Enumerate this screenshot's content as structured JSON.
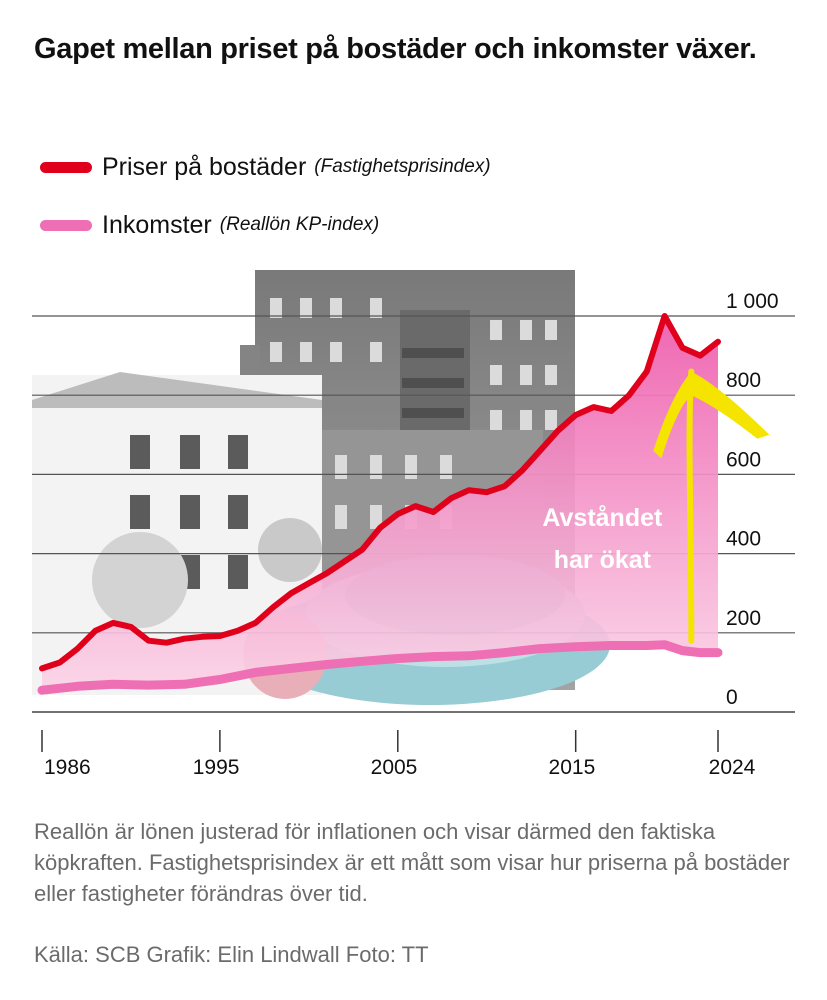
{
  "title": "Gapet mellan priset på bostäder och inkomster växer.",
  "legend": [
    {
      "label": "Priser på bostäder",
      "note": "(Fastighetsprisindex)",
      "color": "#e0001b"
    },
    {
      "label": "Inkomster",
      "note": "(Reallön KP-index)",
      "color": "#ee6fb3"
    }
  ],
  "caption": "Reallön är lönen justerad för inflationen och visar därmed den faktiska köpkraften. Fastighetsprisindex är ett mått som visar hur priserna på bostäder eller fastigheter förändras över tid.",
  "source": "Källa: SCB Grafik: Elin Lindwall Foto: TT",
  "chart_data": {
    "type": "line",
    "title": "Gapet mellan priset på bostäder och inkomster växer.",
    "x_tick_labels": [
      "1986",
      "1995",
      "2005",
      "2015",
      "2024"
    ],
    "y_tick_labels": [
      "0",
      "200",
      "400",
      "600",
      "800",
      "1 000"
    ],
    "xlim": [
      1986,
      2024
    ],
    "ylim": [
      0,
      1000
    ],
    "grid": true,
    "legend_position": "top-left",
    "annotation": "Avståndet har ökat",
    "annotation_lines": [
      "Avståndet",
      "har ökat"
    ],
    "series": [
      {
        "name": "Priser på bostäder (Fastighetsprisindex)",
        "color": "#e0001b",
        "fill_color": "#f08ac1",
        "points": [
          [
            1986,
            110
          ],
          [
            1987,
            125
          ],
          [
            1988,
            160
          ],
          [
            1989,
            205
          ],
          [
            1990,
            225
          ],
          [
            1991,
            215
          ],
          [
            1992,
            180
          ],
          [
            1993,
            175
          ],
          [
            1994,
            185
          ],
          [
            1995,
            190
          ],
          [
            1996,
            192
          ],
          [
            1997,
            205
          ],
          [
            1998,
            225
          ],
          [
            1999,
            265
          ],
          [
            2000,
            300
          ],
          [
            2001,
            325
          ],
          [
            2002,
            350
          ],
          [
            2003,
            380
          ],
          [
            2004,
            410
          ],
          [
            2005,
            465
          ],
          [
            2006,
            500
          ],
          [
            2007,
            520
          ],
          [
            2008,
            505
          ],
          [
            2009,
            540
          ],
          [
            2010,
            560
          ],
          [
            2011,
            555
          ],
          [
            2012,
            570
          ],
          [
            2013,
            610
          ],
          [
            2014,
            660
          ],
          [
            2015,
            710
          ],
          [
            2016,
            750
          ],
          [
            2017,
            770
          ],
          [
            2018,
            760
          ],
          [
            2019,
            800
          ],
          [
            2020,
            860
          ],
          [
            2021,
            1000
          ],
          [
            2022,
            920
          ],
          [
            2023,
            900
          ],
          [
            2024,
            935
          ]
        ]
      },
      {
        "name": "Inkomster (Reallön KP-index)",
        "color": "#ee6fb3",
        "points": [
          [
            1986,
            55
          ],
          [
            1988,
            65
          ],
          [
            1990,
            70
          ],
          [
            1992,
            68
          ],
          [
            1994,
            70
          ],
          [
            1996,
            82
          ],
          [
            1998,
            100
          ],
          [
            2000,
            110
          ],
          [
            2002,
            120
          ],
          [
            2004,
            128
          ],
          [
            2006,
            135
          ],
          [
            2008,
            140
          ],
          [
            2010,
            142
          ],
          [
            2012,
            150
          ],
          [
            2014,
            160
          ],
          [
            2016,
            165
          ],
          [
            2018,
            168
          ],
          [
            2020,
            168
          ],
          [
            2021,
            170
          ],
          [
            2022,
            155
          ],
          [
            2023,
            150
          ],
          [
            2024,
            150
          ]
        ]
      }
    ]
  }
}
